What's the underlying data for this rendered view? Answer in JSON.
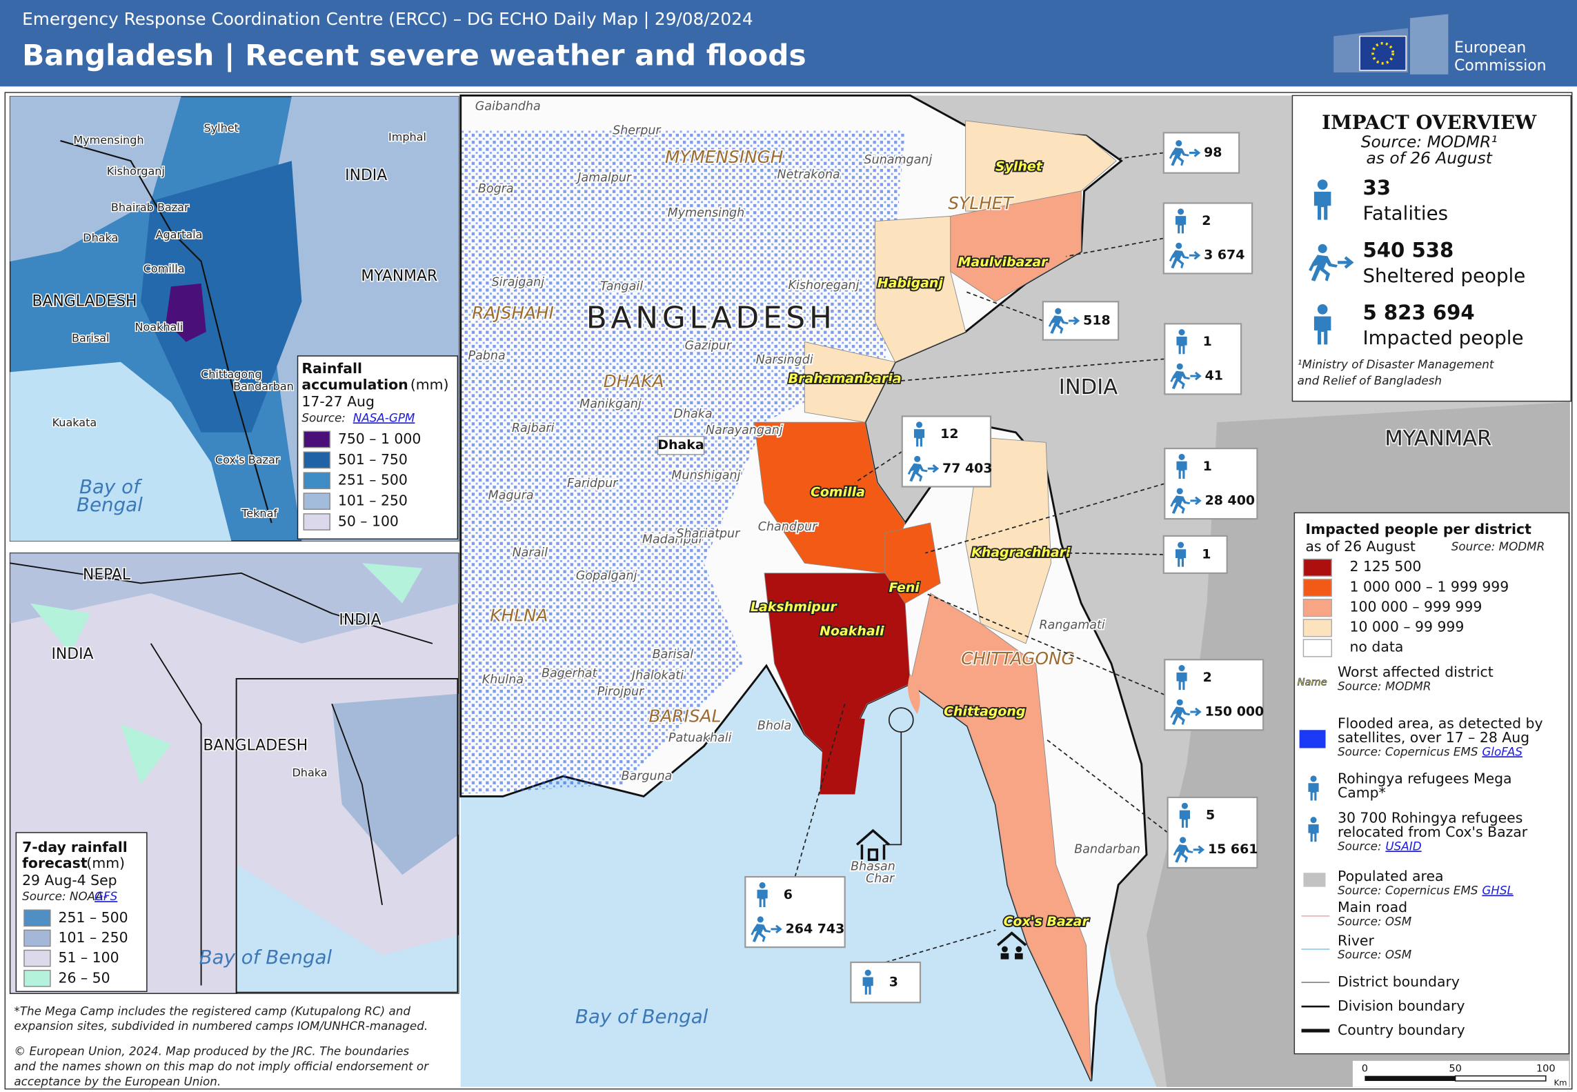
{
  "header": {
    "organization": "Emergency Response Coordination Centre (ERCC) – DG ECHO Daily Map | 29/08/2024",
    "title": "Bangladesh | Recent severe weather and floods"
  },
  "logo": {
    "line1": "European",
    "line2": "Commission"
  },
  "impact_overview": {
    "title": "IMPACT OVERVIEW",
    "source": "Source: MODMR¹",
    "date": "as of 26 August",
    "stats": [
      {
        "value": "33",
        "label": "Fatalities"
      },
      {
        "value": "540 538",
        "label": "Sheltered people"
      },
      {
        "value": "5 823 694",
        "label": "Impacted people"
      }
    ],
    "footnote_line1": "¹Ministry of Disaster Management",
    "footnote_line2": "and Relief of Bangladesh"
  },
  "district_legend": {
    "title": "Impacted people per district",
    "subtitle": "as of 26 August",
    "source": "Source: MODMR",
    "classes": [
      {
        "label": "2 125 500",
        "color": "#ad0e0e"
      },
      {
        "label": "1 000 000 – 1 999 999",
        "color": "#f25a16"
      },
      {
        "label": "100 000 – 999 999",
        "color": "#f7a584"
      },
      {
        "label": "10 000 – 99 999",
        "color": "#fce3bd"
      },
      {
        "label": "no data",
        "color": "#ffffff"
      }
    ]
  },
  "map_legend": {
    "sample_name": "Name",
    "items": [
      {
        "lines": [
          "Worst affected district"
        ],
        "source": "Source:  MODMR"
      },
      {
        "lines": [
          "Flooded area, as detected by",
          "satellites, over 17 – 28 Aug"
        ],
        "source": "Source: Copernicus EMS",
        "link": "GloFAS"
      },
      {
        "lines": [
          "Rohingya refugees Mega",
          "Camp*"
        ]
      },
      {
        "lines": [
          "30 700 Rohingya refugees",
          "relocated from Cox's Bazar"
        ],
        "source": "Source:",
        "link": "USAID"
      },
      {
        "lines": [
          "Populated area"
        ],
        "source": "Source: Copernicus EMS",
        "link": "GHSL"
      },
      {
        "lines": [
          "Main road"
        ],
        "source": "Source: OSM"
      },
      {
        "lines": [
          "River"
        ],
        "source": "Source: OSM"
      },
      {
        "lines": [
          "District boundary"
        ]
      },
      {
        "lines": [
          "Division boundary"
        ]
      },
      {
        "lines": [
          "Country boundary"
        ]
      }
    ]
  },
  "callouts": [
    {
      "sheltered": "98"
    },
    {
      "fatalities": "2",
      "sheltered": "3 674"
    },
    {
      "sheltered": "518"
    },
    {
      "fatalities": "1",
      "sheltered": "41"
    },
    {
      "fatalities": "12",
      "sheltered": "77 403"
    },
    {
      "fatalities": "1",
      "sheltered": "28 400"
    },
    {
      "fatalities": "1"
    },
    {
      "fatalities": "2",
      "sheltered": "150 000"
    },
    {
      "fatalities": "5",
      "sheltered": "15 661"
    },
    {
      "fatalities": "6",
      "sheltered": "264 743"
    },
    {
      "fatalities": "3"
    }
  ],
  "main_map": {
    "countries": [
      "BANGLADESH",
      "INDIA",
      "MYANMAR",
      "Bay of Bengal"
    ],
    "divisions": [
      "MYMENSINGH",
      "SYLHET",
      "RAJSHAHI",
      "DHAKA",
      "KHLNA",
      "BARISAL",
      "CHITTAGONG"
    ],
    "districts": [
      "Sylhet",
      "Maulvibazar",
      "Habiganj",
      "Brahamanbaria",
      "Comilla",
      "Khagrachhari",
      "Feni",
      "Lakshmipur",
      "Noakhali",
      "Chittagong",
      "Cox's Bazar"
    ],
    "towns": [
      "Gaibandha",
      "Sherpur",
      "Jamalpur",
      "Netrakona",
      "Sunamganj",
      "Mymensingh",
      "Bogra",
      "Sirajganj",
      "Tangail",
      "Kishoreganj",
      "Pabna",
      "Gazipur",
      "Narsingdi",
      "Manikganj",
      "Dhaka",
      "Narayanganj",
      "Rajbari",
      "Munshiganj",
      "Faridpur",
      "Magura",
      "Chandpur",
      "Madaripur",
      "Shariatpur",
      "Narail",
      "Gopalganj",
      "Barisal",
      "Bagerhat",
      "Jhalokati",
      "Khulna",
      "Pirojpur",
      "Bhola",
      "Patuakhali",
      "Barguna",
      "Rangamati",
      "Bandarban"
    ],
    "capital": "Dhaka",
    "island": [
      "Bhasan",
      "Char"
    ]
  },
  "rainfall_inset": {
    "labels": [
      "Mymensingh",
      "Sylhet",
      "Imphal",
      "Kishorganj",
      "INDIA",
      "Bhairab Bazar",
      "Dhaka",
      "Agartala",
      "Comilla",
      "MYANMAR",
      "BANGLADESH",
      "Noakhali",
      "Barisal",
      "Chittagong",
      "Bandarban",
      "Kuakata",
      "Cox's Bazar",
      "Teknaf",
      "Bay of",
      "Bengal"
    ],
    "legend": {
      "title_line1": "Rainfall",
      "title_line2": "accumulation",
      "unit": "(mm)",
      "period": "17-27 Aug",
      "source": "Source:",
      "link": "NASA-GPM",
      "classes": [
        {
          "label": "750 – 1 000",
          "color": "#4b0f7a"
        },
        {
          "label": "501 – 750",
          "color": "#1f62a6"
        },
        {
          "label": "251 – 500",
          "color": "#3e8cc4"
        },
        {
          "label": "101 – 250",
          "color": "#a3bcdc"
        },
        {
          "label": "50 – 100",
          "color": "#dad8ea"
        }
      ]
    }
  },
  "forecast_inset": {
    "labels": [
      "NEPAL",
      "INDIA",
      "INDIA",
      "BANGLADESH",
      "Dhaka",
      "Bay of Bengal"
    ],
    "legend": {
      "title_line1": "7-day rainfall",
      "title_line2": "forecast",
      "unit": "(mm)",
      "period": "29 Aug-4 Sep",
      "source": "Source: NOAA-",
      "link": "GFS",
      "classes": [
        {
          "label": "251 – 500",
          "color": "#4f8fc3"
        },
        {
          "label": "101 – 250",
          "color": "#a3b8d9"
        },
        {
          "label": "51 – 100",
          "color": "#dcdaea"
        },
        {
          "label": "26 – 50",
          "color": "#b5f2dc"
        }
      ]
    }
  },
  "footnotes": [
    "*The Mega Camp includes the registered camp (Kutupalong RC) and",
    "expansion sites, subdivided in numbered camps IOM/UNHCR-managed.",
    "© European Union, 2024. Map produced by the JRC. The boundaries",
    "and the names shown on this map do not imply official endorsement or",
    "acceptance  by the European Union."
  ],
  "scale_bar": [
    "0",
    "50",
    "100",
    "Km"
  ]
}
